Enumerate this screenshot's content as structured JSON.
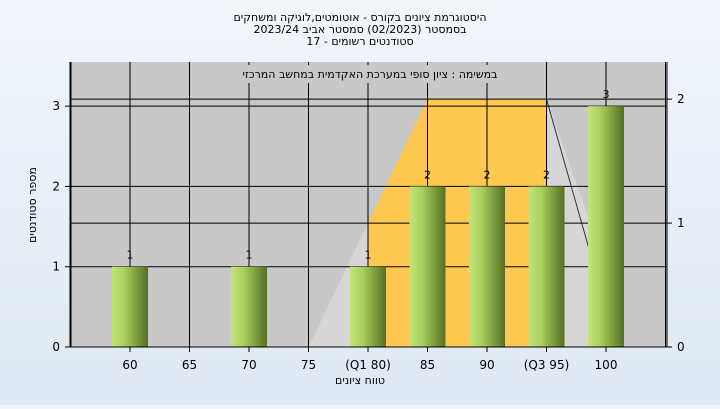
{
  "header": {
    "title_lines": [
      "היסטוגרמת ציונים בקורס - אוטומטים,לוגיקה ומשחקים",
      "בסמסטר  (02/2023)  סמסטר אביב 2023/24",
      "סטודנטים רשומים - 17"
    ]
  },
  "chart_data": {
    "type": "bar",
    "title": "היסטוגרמת ציונים בקורס - אוטומטים,לוגיקה ומשחקים",
    "subtitle": "בסמסטר  (02/2023)  סמסטר אביב 2023/24",
    "note": "סטודנטים רשומים - 17",
    "annotation": "במשימה : ציון סופי במערכת האקדמית במחשב המרכזי",
    "xlabel": "טווח ציונים",
    "ylabel": "מספר סטודנטים",
    "categories": [
      "60",
      "65",
      "70",
      "75",
      "(Q1 80)",
      "85",
      "90",
      "(Q3 95)",
      "100"
    ],
    "series": [
      {
        "values": [
          1,
          0,
          1,
          0,
          1,
          2,
          2,
          2,
          3
        ]
      }
    ],
    "data_labels": [
      "1",
      "",
      "1",
      "",
      "1",
      "2",
      "2",
      "2",
      "3"
    ],
    "ylim": [
      0,
      3.55
    ],
    "yticks": [
      "0",
      "1",
      "2",
      "3"
    ],
    "y2lim": [
      0,
      2.3
    ],
    "y2ticks": [
      "0",
      "1",
      "2"
    ],
    "box_plot": {
      "q1": "80",
      "q3": "95",
      "max": "100",
      "lower_value": 1.0,
      "upper_value": 2.0
    },
    "grid": true,
    "colors": {
      "plot_bg": "#c8c8c8",
      "box_fill": "#ffc850",
      "bar_light": "#b9dc6e",
      "bar_dark": "#5f7a2a",
      "grid": "#000000"
    }
  }
}
